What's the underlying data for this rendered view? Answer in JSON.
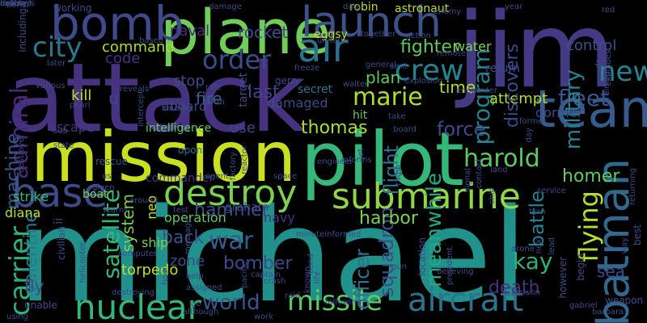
{
  "words": [
    {
      "text": "michael",
      "color": "#21918c"
    },
    {
      "text": "attack",
      "color": "#46327e"
    },
    {
      "text": "jim",
      "color": "#443a83"
    },
    {
      "text": "mission",
      "color": "#c8e020"
    },
    {
      "text": "pilot",
      "color": "#35b779"
    },
    {
      "text": "plane",
      "color": "#6ece58"
    },
    {
      "text": "bomb",
      "color": "#3e4a89"
    },
    {
      "text": "launch",
      "color": "#3b528b"
    },
    {
      "text": "team",
      "color": "#365c8d"
    },
    {
      "text": "batman",
      "color": "#31688e"
    },
    {
      "text": "submarine",
      "color": "#90d743"
    },
    {
      "text": "base",
      "color": "#3e4a89"
    },
    {
      "text": "destroy",
      "color": "#7ad151"
    },
    {
      "text": "aircraft",
      "color": "#2c728e"
    },
    {
      "text": "nuclear",
      "color": "#35b779"
    },
    {
      "text": "missile",
      "color": "#5ec962"
    },
    {
      "text": "air",
      "color": "#2c728e"
    },
    {
      "text": "crew",
      "color": "#26828e"
    },
    {
      "text": "new",
      "color": "#26828e"
    },
    {
      "text": "order",
      "color": "#3e4a89"
    },
    {
      "text": "city",
      "color": "#2a788e"
    },
    {
      "text": "world",
      "color": "#3b528b"
    },
    {
      "text": "war",
      "color": "#365c8d"
    },
    {
      "text": "fleet",
      "color": "#3b528b"
    },
    {
      "text": "harold",
      "color": "#5ec962"
    },
    {
      "text": "flying",
      "color": "#b5de2b"
    },
    {
      "text": "kay",
      "color": "#2db27d"
    },
    {
      "text": "marie",
      "color": "#addc30"
    },
    {
      "text": "carrier",
      "color": "#2db27d"
    },
    {
      "text": "hammer",
      "color": "#3e4a89"
    },
    {
      "text": "back",
      "color": "#3b528b"
    },
    {
      "text": "bomber",
      "color": "#3e4a89"
    },
    {
      "text": "thomas",
      "color": "#addc30"
    },
    {
      "text": "program",
      "color": "#26828e"
    },
    {
      "text": "admiral",
      "color": "#482878"
    },
    {
      "text": "fighter",
      "color": "#5ec962"
    },
    {
      "text": "command",
      "color": "#aadc32"
    },
    {
      "text": "rocket",
      "color": "#3e4a89"
    },
    {
      "text": "naval",
      "color": "#472d7b"
    },
    {
      "text": "code",
      "color": "#46327e"
    },
    {
      "text": "last",
      "color": "#404688"
    },
    {
      "text": "fire",
      "color": "#34618d"
    },
    {
      "text": "stop",
      "color": "#3e4a89"
    },
    {
      "text": "plan",
      "color": "#5ec962"
    },
    {
      "text": "time",
      "color": "#b5de2b"
    },
    {
      "text": "attempt",
      "color": "#b5de2b"
    },
    {
      "text": "control",
      "color": "#3b528b"
    },
    {
      "text": "military",
      "color": "#26828e"
    },
    {
      "text": "discovers",
      "color": "#3e4a89"
    },
    {
      "text": "force",
      "color": "#3e4a89"
    },
    {
      "text": "homer",
      "color": "#5ec962"
    },
    {
      "text": "battle",
      "color": "#26828e"
    },
    {
      "text": "squadron",
      "color": "#3e4a89"
    },
    {
      "text": "meanwhile",
      "color": "#22a884"
    },
    {
      "text": "flight",
      "color": "#2c728e"
    },
    {
      "text": "officer",
      "color": "#2c728e"
    },
    {
      "text": "harbor",
      "color": "#7ad151"
    },
    {
      "text": "satellite",
      "color": "#35b779"
    },
    {
      "text": "system",
      "color": "#7ad151"
    },
    {
      "text": "zone",
      "color": "#3e4a89"
    },
    {
      "text": "machine",
      "color": "#38598c"
    },
    {
      "text": "valentine",
      "color": "#2a788e"
    },
    {
      "text": "fly",
      "color": "#3e4a89"
    },
    {
      "text": "death",
      "color": "#46327e"
    },
    {
      "text": "sea",
      "color": "#3e4a89"
    },
    {
      "text": "use",
      "color": "#404688"
    },
    {
      "text": "intelligence",
      "color": "#5ec962"
    },
    {
      "text": "operation",
      "color": "#5ec962"
    },
    {
      "text": "torpedo",
      "color": "#c2df23"
    },
    {
      "text": "ship",
      "color": "#7ad151"
    },
    {
      "text": "neo",
      "color": "#c8e020"
    },
    {
      "text": "commander",
      "color": "#443983"
    },
    {
      "text": "aboard",
      "color": "#3e4a89"
    },
    {
      "text": "damaged",
      "color": "#3e4a89"
    },
    {
      "text": "kill",
      "color": "#bddf26"
    },
    {
      "text": "escape",
      "color": "#443983"
    },
    {
      "text": "strike",
      "color": "#35b779"
    },
    {
      "text": "boat",
      "color": "#7ad151"
    },
    {
      "text": "navy",
      "color": "#46327e"
    },
    {
      "text": "graham",
      "color": "#3e4a89"
    },
    {
      "text": "diana",
      "color": "#bddf26"
    },
    {
      "text": "dormer",
      "color": "#3e4a89"
    },
    {
      "text": "u",
      "color": "#3e4a89"
    },
    {
      "text": "ii",
      "color": "#3e4a89"
    },
    {
      "text": "upon",
      "color": "#2c728e"
    },
    {
      "text": "hit",
      "color": "#5ec962"
    },
    {
      "text": "secret",
      "color": "#2c728e"
    },
    {
      "text": "target",
      "color": "#3e4a89"
    },
    {
      "text": "water",
      "color": "#7ad151"
    },
    {
      "text": "return",
      "color": "#3e4a89"
    },
    {
      "text": "gerry",
      "color": "#3e4a89"
    },
    {
      "text": "eggsy",
      "color": "#c2df23"
    },
    {
      "text": "robin",
      "color": "#b5de2b"
    },
    {
      "text": "working",
      "color": "#3e4a89"
    },
    {
      "text": "boris",
      "color": "#3e4a89"
    },
    {
      "text": "astronaut",
      "color": "#bddf26"
    },
    {
      "text": "data",
      "color": "#3e4a89"
    },
    {
      "text": "enemy",
      "color": "#3e4a89"
    },
    {
      "text": "year",
      "color": "#3e4a89"
    },
    {
      "text": "red",
      "color": "#3e4a89"
    },
    {
      "text": "based",
      "color": "#3e4a89"
    },
    {
      "text": "damage",
      "color": "#3e4a89"
    },
    {
      "text": "later",
      "color": "#3e4a89"
    },
    {
      "text": "various",
      "color": "#3e4a89"
    },
    {
      "text": "pearl",
      "color": "#3e4a89"
    },
    {
      "text": "reveals",
      "color": "#3e4a89"
    },
    {
      "text": "rafe",
      "color": "#3e4a89"
    },
    {
      "text": "arm",
      "color": "#3e4a89"
    },
    {
      "text": "landing",
      "color": "#3e4a89"
    },
    {
      "text": "intercept",
      "color": "#3e4a89"
    },
    {
      "text": "including",
      "color": "#3e4a89"
    },
    {
      "text": "destroyer",
      "color": "#3e4a89"
    },
    {
      "text": "state",
      "color": "#3e4a89"
    },
    {
      "text": "rescue",
      "color": "#3e4a89"
    },
    {
      "text": "sub",
      "color": "#3e4a89"
    },
    {
      "text": "us",
      "color": "#3e4a89"
    },
    {
      "text": "given",
      "color": "#3e4a89"
    },
    {
      "text": "civilian",
      "color": "#3e4a89"
    },
    {
      "text": "helicopter",
      "color": "#3e4a89"
    },
    {
      "text": "computer",
      "color": "#3e4a89"
    },
    {
      "text": "learns",
      "color": "#3e4a89"
    },
    {
      "text": "around",
      "color": "#3e4a89"
    },
    {
      "text": "test",
      "color": "#3e4a89"
    },
    {
      "text": "message",
      "color": "#3e4a89"
    },
    {
      "text": "agent",
      "color": "#3e4a89"
    },
    {
      "text": "space",
      "color": "#3e4a89"
    },
    {
      "text": "reactor",
      "color": "#3e4a89"
    },
    {
      "text": "factory",
      "color": "#3e4a89"
    },
    {
      "text": "engineer",
      "color": "#3e4a89"
    },
    {
      "text": "informs",
      "color": "#3e4a89"
    },
    {
      "text": "jet",
      "color": "#3e4a89"
    },
    {
      "text": "radio",
      "color": "#3e4a89"
    },
    {
      "text": "land",
      "color": "#3e4a89"
    },
    {
      "text": "contact",
      "color": "#3e4a89"
    },
    {
      "text": "signal",
      "color": "#3e4a89"
    },
    {
      "text": "chip",
      "color": "#3e4a89"
    },
    {
      "text": "service",
      "color": "#3e4a89"
    },
    {
      "text": "turn",
      "color": "#3e4a89"
    },
    {
      "text": "day",
      "color": "#3e4a89"
    },
    {
      "text": "former",
      "color": "#3e4a89"
    },
    {
      "text": "take",
      "color": "#3e4a89"
    },
    {
      "text": "board",
      "color": "#3e4a89"
    },
    {
      "text": "dr",
      "color": "#3e4a89"
    },
    {
      "text": "explodes",
      "color": "#3e4a89"
    },
    {
      "text": "training",
      "color": "#3e4a89"
    },
    {
      "text": "returning",
      "color": "#3e4a89"
    },
    {
      "text": "explosion",
      "color": "#3e4a89"
    },
    {
      "text": "encounter",
      "color": "#3e4a89"
    },
    {
      "text": "remote",
      "color": "#3e4a89"
    },
    {
      "text": "sent",
      "color": "#3e4a89"
    },
    {
      "text": "general",
      "color": "#3e4a89"
    },
    {
      "text": "together",
      "color": "#3e4a89"
    },
    {
      "text": "action",
      "color": "#3e4a89"
    },
    {
      "text": "united",
      "color": "#3e4a89"
    },
    {
      "text": "freeze",
      "color": "#3e4a89"
    },
    {
      "text": "walter",
      "color": "#3e4a89"
    },
    {
      "text": "best",
      "color": "#3e4a89"
    },
    {
      "text": "way",
      "color": "#3e4a89"
    },
    {
      "text": "barbara",
      "color": "#3e4a89"
    },
    {
      "text": "weapon",
      "color": "#3e4a89"
    },
    {
      "text": "gabriel",
      "color": "#3e4a89"
    },
    {
      "text": "watson",
      "color": "#3e4a89"
    },
    {
      "text": "however",
      "color": "#3e4a89"
    },
    {
      "text": "begin",
      "color": "#3e4a89"
    },
    {
      "text": "lead",
      "color": "#3e4a89"
    },
    {
      "text": "next",
      "color": "#3e4a89"
    },
    {
      "text": "drone",
      "color": "#3e4a89"
    },
    {
      "text": "location",
      "color": "#3e4a89"
    },
    {
      "text": "president",
      "color": "#3e4a89"
    },
    {
      "text": "believing",
      "color": "#3e4a89"
    },
    {
      "text": "gun",
      "color": "#3e4a89"
    },
    {
      "text": "following",
      "color": "#3e4a89"
    },
    {
      "text": "raid",
      "color": "#3e4a89"
    },
    {
      "text": "known",
      "color": "#3e4a89"
    },
    {
      "text": "crash",
      "color": "#3e4a89"
    },
    {
      "text": "captain",
      "color": "#3e4a89"
    },
    {
      "text": "pacific",
      "color": "#3e4a89"
    },
    {
      "text": "assigned",
      "color": "#3e4a89"
    },
    {
      "text": "help",
      "color": "#3e4a89"
    },
    {
      "text": "hour",
      "color": "#3e4a89"
    },
    {
      "text": "destroying",
      "color": "#3e4a89"
    },
    {
      "text": "unable",
      "color": "#3e4a89"
    },
    {
      "text": "using",
      "color": "#3e4a89"
    },
    {
      "text": "although",
      "color": "#3e4a89"
    },
    {
      "text": "go",
      "color": "#3e4a89"
    },
    {
      "text": "work",
      "color": "#3e4a89"
    },
    {
      "text": "bond",
      "color": "#3e4a89"
    },
    {
      "text": "life",
      "color": "#3e4a89"
    },
    {
      "text": "minuteinformed",
      "color": "#3e4a89"
    },
    {
      "text": "anti",
      "color": "#3e4a89"
    },
    {
      "text": "destroys",
      "color": "#3e4a89"
    },
    {
      "text": "facility",
      "color": "#3e4a89"
    },
    {
      "text": "ordered",
      "color": "#3e4a89"
    }
  ]
}
